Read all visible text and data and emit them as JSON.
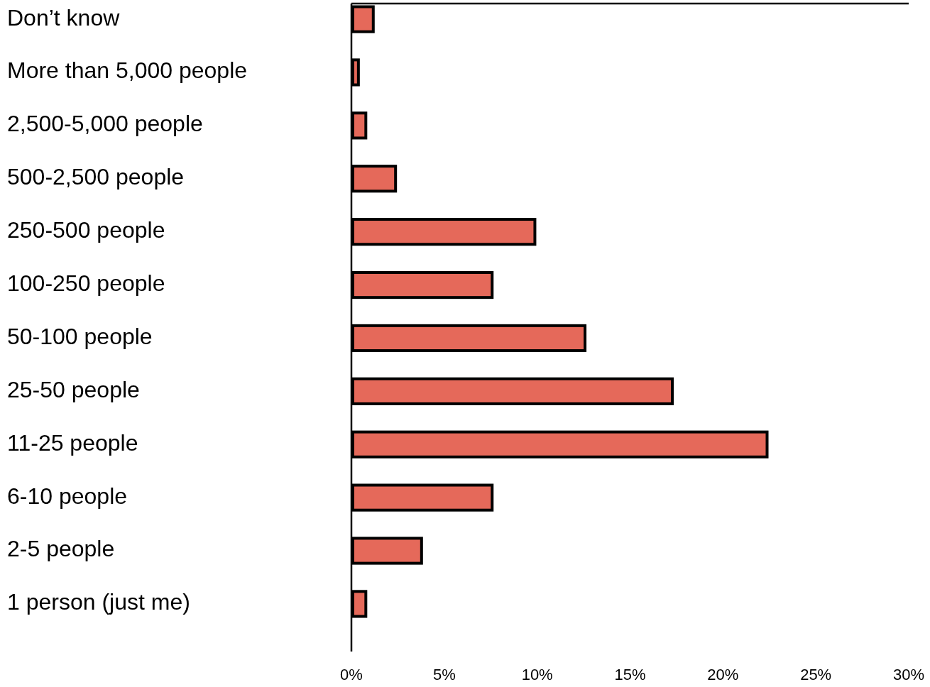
{
  "chart_data": {
    "type": "bar",
    "orientation": "horizontal",
    "categories": [
      "Don’t know",
      "More than 5,000 people",
      "2,500-5,000 people",
      "500-2,500 people",
      "250-500 people",
      "100-250 people",
      "50-100 people",
      "25-50 people",
      "11-25 people",
      "6-10 people",
      "2-5 people",
      "1 person (just me)"
    ],
    "values": [
      1.1,
      0.3,
      0.7,
      2.3,
      9.8,
      7.5,
      12.5,
      17.2,
      22.3,
      7.5,
      3.7,
      0.7
    ],
    "color": "#e5695a",
    "xlim": [
      0,
      30
    ],
    "xticks": [
      {
        "value": 0,
        "label": "0%"
      },
      {
        "value": 5,
        "label": "5%"
      },
      {
        "value": 10,
        "label": "10%"
      },
      {
        "value": 15,
        "label": "15%"
      },
      {
        "value": 20,
        "label": "20%"
      },
      {
        "value": 25,
        "label": "25%"
      },
      {
        "value": 30,
        "label": "30%"
      }
    ],
    "grid": false
  }
}
